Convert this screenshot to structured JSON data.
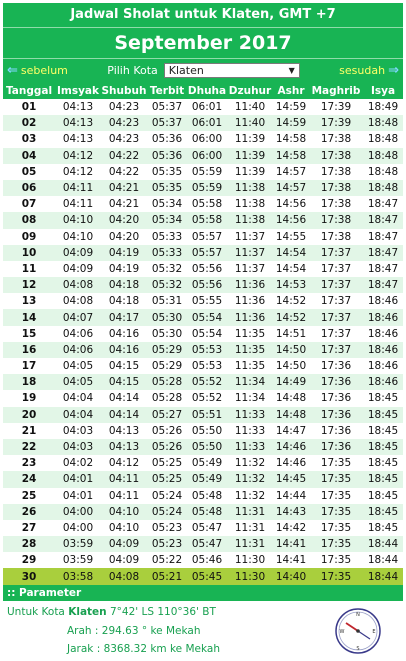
{
  "header": {
    "title": "Jadwal Sholat untuk Klaten, GMT +7",
    "month": "September 2017"
  },
  "nav": {
    "prev_label": "sebelum",
    "next_label": "sesudah",
    "city_label": "Pilih Kota",
    "city_value": "Klaten"
  },
  "columns": [
    "Tanggal",
    "Imsyak",
    "Shubuh",
    "Terbit",
    "Dhuha",
    "Dzuhur",
    "Ashr",
    "Maghrib",
    "Isya"
  ],
  "today_index": 29,
  "rows": [
    [
      "01",
      "04:13",
      "04:23",
      "05:37",
      "06:01",
      "11:40",
      "14:59",
      "17:39",
      "18:49"
    ],
    [
      "02",
      "04:13",
      "04:23",
      "05:37",
      "06:01",
      "11:40",
      "14:59",
      "17:39",
      "18:48"
    ],
    [
      "03",
      "04:13",
      "04:23",
      "05:36",
      "06:00",
      "11:39",
      "14:58",
      "17:38",
      "18:48"
    ],
    [
      "04",
      "04:12",
      "04:22",
      "05:36",
      "06:00",
      "11:39",
      "14:58",
      "17:38",
      "18:48"
    ],
    [
      "05",
      "04:12",
      "04:22",
      "05:35",
      "05:59",
      "11:39",
      "14:57",
      "17:38",
      "18:48"
    ],
    [
      "06",
      "04:11",
      "04:21",
      "05:35",
      "05:59",
      "11:38",
      "14:57",
      "17:38",
      "18:48"
    ],
    [
      "07",
      "04:11",
      "04:21",
      "05:34",
      "05:58",
      "11:38",
      "14:56",
      "17:38",
      "18:47"
    ],
    [
      "08",
      "04:10",
      "04:20",
      "05:34",
      "05:58",
      "11:38",
      "14:56",
      "17:38",
      "18:47"
    ],
    [
      "09",
      "04:10",
      "04:20",
      "05:33",
      "05:57",
      "11:37",
      "14:55",
      "17:38",
      "18:47"
    ],
    [
      "10",
      "04:09",
      "04:19",
      "05:33",
      "05:57",
      "11:37",
      "14:54",
      "17:37",
      "18:47"
    ],
    [
      "11",
      "04:09",
      "04:19",
      "05:32",
      "05:56",
      "11:37",
      "14:54",
      "17:37",
      "18:47"
    ],
    [
      "12",
      "04:08",
      "04:18",
      "05:32",
      "05:56",
      "11:36",
      "14:53",
      "17:37",
      "18:47"
    ],
    [
      "13",
      "04:08",
      "04:18",
      "05:31",
      "05:55",
      "11:36",
      "14:52",
      "17:37",
      "18:46"
    ],
    [
      "14",
      "04:07",
      "04:17",
      "05:30",
      "05:54",
      "11:36",
      "14:52",
      "17:37",
      "18:46"
    ],
    [
      "15",
      "04:06",
      "04:16",
      "05:30",
      "05:54",
      "11:35",
      "14:51",
      "17:37",
      "18:46"
    ],
    [
      "16",
      "04:06",
      "04:16",
      "05:29",
      "05:53",
      "11:35",
      "14:50",
      "17:37",
      "18:46"
    ],
    [
      "17",
      "04:05",
      "04:15",
      "05:29",
      "05:53",
      "11:35",
      "14:50",
      "17:36",
      "18:46"
    ],
    [
      "18",
      "04:05",
      "04:15",
      "05:28",
      "05:52",
      "11:34",
      "14:49",
      "17:36",
      "18:46"
    ],
    [
      "19",
      "04:04",
      "04:14",
      "05:28",
      "05:52",
      "11:34",
      "14:48",
      "17:36",
      "18:45"
    ],
    [
      "20",
      "04:04",
      "04:14",
      "05:27",
      "05:51",
      "11:33",
      "14:48",
      "17:36",
      "18:45"
    ],
    [
      "21",
      "04:03",
      "04:13",
      "05:26",
      "05:50",
      "11:33",
      "14:47",
      "17:36",
      "18:45"
    ],
    [
      "22",
      "04:03",
      "04:13",
      "05:26",
      "05:50",
      "11:33",
      "14:46",
      "17:36",
      "18:45"
    ],
    [
      "23",
      "04:02",
      "04:12",
      "05:25",
      "05:49",
      "11:32",
      "14:46",
      "17:35",
      "18:45"
    ],
    [
      "24",
      "04:01",
      "04:11",
      "05:25",
      "05:49",
      "11:32",
      "14:45",
      "17:35",
      "18:45"
    ],
    [
      "25",
      "04:01",
      "04:11",
      "05:24",
      "05:48",
      "11:32",
      "14:44",
      "17:35",
      "18:45"
    ],
    [
      "26",
      "04:00",
      "04:10",
      "05:24",
      "05:48",
      "11:31",
      "14:43",
      "17:35",
      "18:45"
    ],
    [
      "27",
      "04:00",
      "04:10",
      "05:23",
      "05:47",
      "11:31",
      "14:42",
      "17:35",
      "18:45"
    ],
    [
      "28",
      "03:59",
      "04:09",
      "05:23",
      "05:47",
      "11:31",
      "14:41",
      "17:35",
      "18:44"
    ],
    [
      "29",
      "03:59",
      "04:09",
      "05:22",
      "05:46",
      "11:30",
      "14:41",
      "17:35",
      "18:44"
    ],
    [
      "30",
      "03:58",
      "04:08",
      "05:21",
      "05:45",
      "11:30",
      "14:40",
      "17:35",
      "18:44"
    ]
  ],
  "params": {
    "header": ":: Parameter",
    "city_prefix": "Untuk Kota",
    "city": "Klaten",
    "coords": "7°42' LS 110°36' BT",
    "arah": "Arah : 294.63 ° ke Mekah",
    "jarak": "Jarak : 8368.32 km ke Mekah"
  },
  "colors": {
    "green": "#18b454",
    "row_alt": "#e2f6e7",
    "today": "#a9cf3d",
    "link": "#ffff66"
  }
}
